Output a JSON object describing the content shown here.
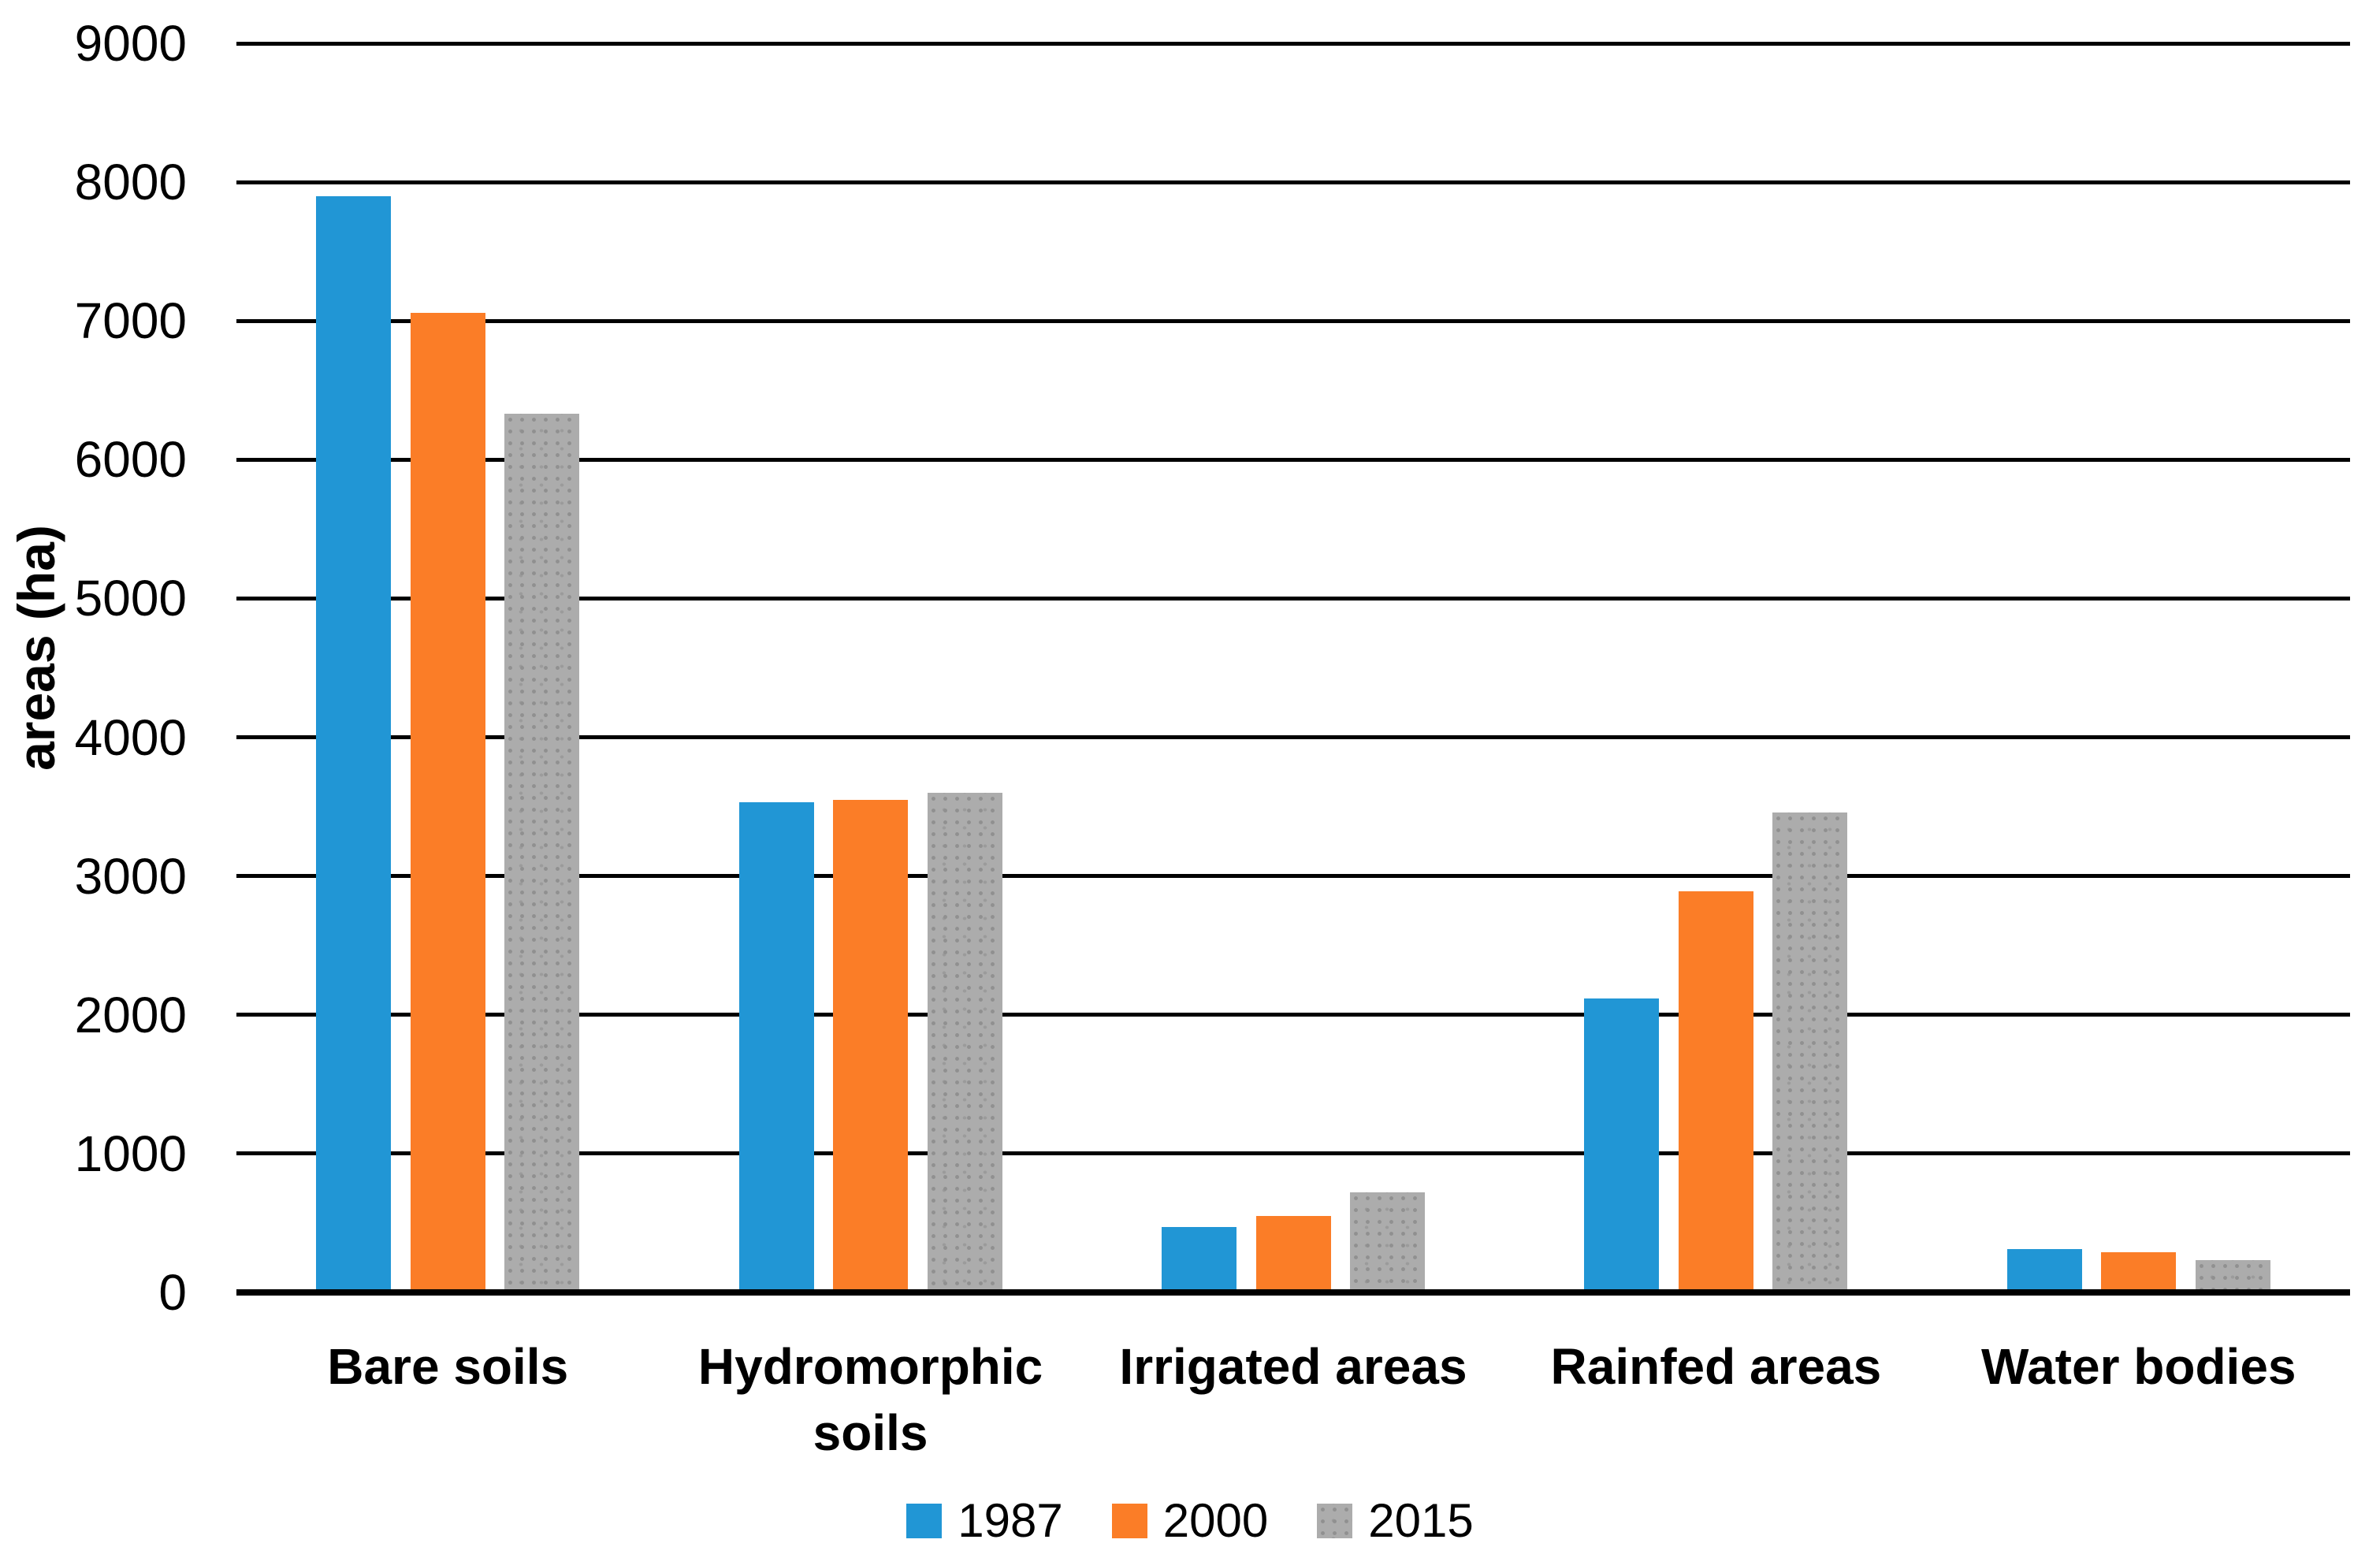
{
  "chart_data": {
    "type": "bar",
    "title": "",
    "ylabel": "areas (ha)",
    "xlabel": "",
    "ylim": [
      0,
      9000
    ],
    "ytick_interval": 1000,
    "ytick_labels": [
      "0",
      "1000",
      "2000",
      "3000",
      "4000",
      "5000",
      "6000",
      "7000",
      "8000",
      "9000"
    ],
    "grid": "horizontal",
    "legend_position": "bottom",
    "categories": [
      "Bare soils",
      "Hydromorphic soils",
      "Irrigated areas",
      "Rainfed areas",
      "Water bodies"
    ],
    "series": [
      {
        "name": "1987",
        "color": "#2196D5",
        "pattern": "solid",
        "values": [
          7900,
          3530,
          470,
          2120,
          310
        ]
      },
      {
        "name": "2000",
        "color": "#FB7D27",
        "pattern": "solid",
        "values": [
          7060,
          3550,
          550,
          2890,
          290
        ]
      },
      {
        "name": "2015",
        "color": "#ACACAC",
        "pattern": "dotted",
        "values": [
          6330,
          3600,
          720,
          3460,
          230
        ]
      }
    ],
    "colors": {
      "gridline": "#000000",
      "axis_line": "#000000",
      "text": "#000000"
    }
  }
}
